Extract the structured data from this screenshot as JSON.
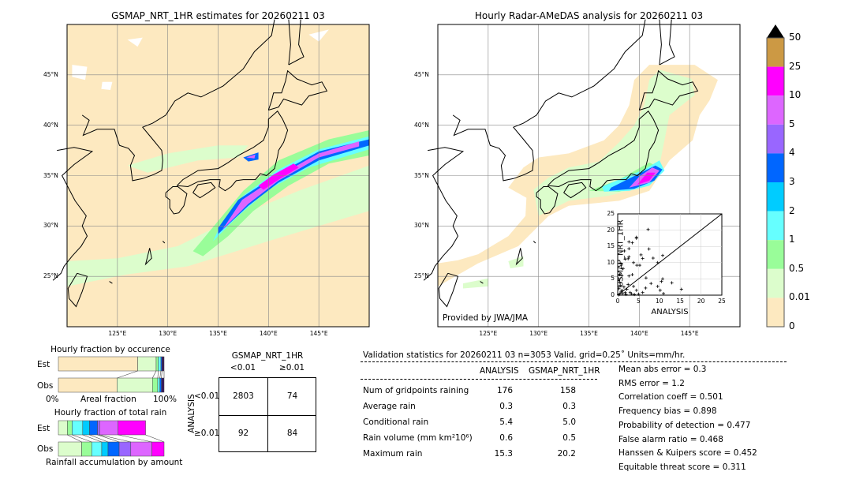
{
  "colors": {
    "beige": "#fde9c0",
    "light_green": "#dcfdcc",
    "green": "#99fd99",
    "cyan": "#66ffff",
    "sky": "#00ccff",
    "blue": "#0066ff",
    "purple": "#9966ff",
    "violet": "#dd66ff",
    "magenta": "#ff00ff",
    "tan": "#cc9944"
  },
  "chart_data": [
    {
      "type": "map",
      "title": "GSMAP_NRT_1HR estimates for 20260211 03",
      "lon_ticks": [
        "125°E",
        "130°E",
        "135°E",
        "140°E",
        "145°E"
      ],
      "lat_ticks": [
        "45°N",
        "40°N",
        "35°N",
        "30°N",
        "25°N"
      ],
      "lon_range": [
        120,
        150
      ],
      "lat_range": [
        20,
        50
      ]
    },
    {
      "type": "map",
      "title": "Hourly Radar-AMeDAS analysis for 20260211 03",
      "lon_ticks": [
        "125°E",
        "130°E",
        "135°E",
        "140°E",
        "145°E"
      ],
      "lat_ticks": [
        "45°N",
        "40°N",
        "35°N",
        "30°N",
        "25°N"
      ],
      "lon_range": [
        120,
        150
      ],
      "lat_range": [
        20,
        50
      ],
      "credit": "Provided by JWA/JMA"
    },
    {
      "type": "scatter",
      "xlabel": "ANALYSIS",
      "ylabel": "GSMAP_NRT_1HR",
      "xlim": [
        0,
        25
      ],
      "ylim": [
        0,
        25
      ],
      "ticks": [
        "0",
        "5",
        "10",
        "15",
        "20",
        "25"
      ],
      "points": [
        [
          7.3,
          20.2
        ],
        [
          4.5,
          17.8
        ],
        [
          4.5,
          17.5
        ],
        [
          2.7,
          16.4
        ],
        [
          3.5,
          16.1
        ],
        [
          1.6,
          13.6
        ],
        [
          2.7,
          14.3
        ],
        [
          7.5,
          14.2
        ],
        [
          5.6,
          12.4
        ],
        [
          10.8,
          12.2
        ],
        [
          1.8,
          11.1
        ],
        [
          2.7,
          11.8
        ],
        [
          2.5,
          11.2
        ],
        [
          3.8,
          10
        ],
        [
          6,
          11.3
        ],
        [
          8.5,
          11.4
        ],
        [
          9.6,
          10
        ],
        [
          4.6,
          9.2
        ],
        [
          5.3,
          9.2
        ],
        [
          0.8,
          9.6
        ],
        [
          1.3,
          8.2
        ],
        [
          0.5,
          6.3
        ],
        [
          1,
          6
        ],
        [
          2.7,
          5.9
        ],
        [
          3.5,
          6.3
        ],
        [
          6.8,
          5.3
        ],
        [
          10.8,
          5
        ],
        [
          10.5,
          4.2
        ],
        [
          8,
          3.6
        ],
        [
          13,
          3.8
        ],
        [
          9.6,
          2.7
        ],
        [
          6.7,
          2.2
        ],
        [
          15.3,
          1.8
        ],
        [
          10.2,
          1.5
        ],
        [
          11,
          0.5
        ],
        [
          4.5,
          1.5
        ],
        [
          3.8,
          2.7
        ],
        [
          2.5,
          3.3
        ],
        [
          1.5,
          2.5
        ],
        [
          0.5,
          4
        ],
        [
          0.3,
          2
        ],
        [
          0.8,
          1
        ],
        [
          1.2,
          0.5
        ],
        [
          2,
          0.2
        ],
        [
          3,
          0.8
        ],
        [
          5,
          0.3
        ],
        [
          6,
          0.8
        ],
        [
          0.2,
          0.1
        ],
        [
          0.5,
          0.3
        ],
        [
          1,
          1.5
        ],
        [
          1.8,
          0.8
        ],
        [
          4,
          0.2
        ],
        [
          0.3,
          5
        ],
        [
          0.6,
          3
        ],
        [
          2.2,
          1.8
        ],
        [
          3.3,
          0.4
        ]
      ]
    },
    {
      "type": "colorbar",
      "labels": [
        "50",
        "25",
        "10",
        "5",
        "4",
        "3",
        "2",
        "1",
        "0.5",
        "0.01",
        "0"
      ],
      "colors": [
        "#cc9944",
        "#ff00ff",
        "#dd66ff",
        "#9966ff",
        "#0066ff",
        "#00ccff",
        "#66ffff",
        "#99fd99",
        "#dcfdcc",
        "#fde9c0"
      ]
    },
    {
      "type": "bar",
      "title": "Hourly fraction by occurence",
      "xlabel": "Areal fraction",
      "x_ticks": [
        "0%",
        "100%"
      ],
      "categories": [
        "Est",
        "Obs"
      ],
      "series_percent": {
        "Est": [
          75,
          17.5,
          2,
          2.5,
          1,
          2
        ],
        "Obs": [
          55.5,
          33.5,
          5,
          2,
          1.5,
          2.5
        ]
      },
      "colors": [
        "#fde9c0",
        "#dcfdcc",
        "#99fd99",
        "#66ffff",
        "#0066ff",
        "#3b1a5a"
      ]
    },
    {
      "type": "bar",
      "title": "Hourly fraction of total rain",
      "xlabel": "Rainfall accumulation by amount",
      "categories": [
        "Est",
        "Obs"
      ],
      "series_percent": {
        "Est": [
          8.5,
          4.5,
          10,
          6.5,
          7.5,
          2,
          17.5,
          26
        ],
        "Obs": [
          22,
          9.5,
          9.5,
          6,
          10.5,
          11,
          20,
          11.5
        ]
      },
      "colors": [
        "#dcfdcc",
        "#99fd99",
        "#66ffff",
        "#00ccff",
        "#0066ff",
        "#9966ff",
        "#dd66ff",
        "#ff00ff"
      ]
    },
    {
      "type": "table",
      "title": "GSMAP_NRT_1HR",
      "col_headers": [
        "<0.01",
        "≥0.01"
      ],
      "row_label": "ANALYSIS",
      "row_headers": [
        "<0.01",
        "≥0.01"
      ],
      "cells": [
        [
          "2803",
          "74"
        ],
        [
          "92",
          "84"
        ]
      ]
    }
  ],
  "stats": {
    "header": "Validation statistics for 20260211 03  n=3053 Valid. grid=0.25˚ Units=mm/hr.",
    "col_analysis": "ANALYSIS",
    "col_gsmap": "GSMAP_NRT_1HR",
    "rows": [
      {
        "label": "Num of gridpoints raining",
        "a": "176",
        "g": "158"
      },
      {
        "label": "Average rain",
        "a": "0.3",
        "g": "0.3"
      },
      {
        "label": "Conditional rain",
        "a": "5.4",
        "g": "5.0"
      },
      {
        "label": "Rain volume (mm km²10⁶)",
        "a": "0.6",
        "g": "0.5"
      },
      {
        "label": "Maximum rain",
        "a": "15.3",
        "g": "20.2"
      }
    ],
    "scores": [
      "Mean abs error =    0.3",
      "RMS error =    1.2",
      "Correlation coeff =  0.501",
      "Frequency bias =  0.898",
      "Probability of detection =  0.477",
      "False alarm ratio =  0.468",
      "Hanssen & Kuipers score =  0.452",
      "Equitable threat score =  0.311"
    ]
  }
}
